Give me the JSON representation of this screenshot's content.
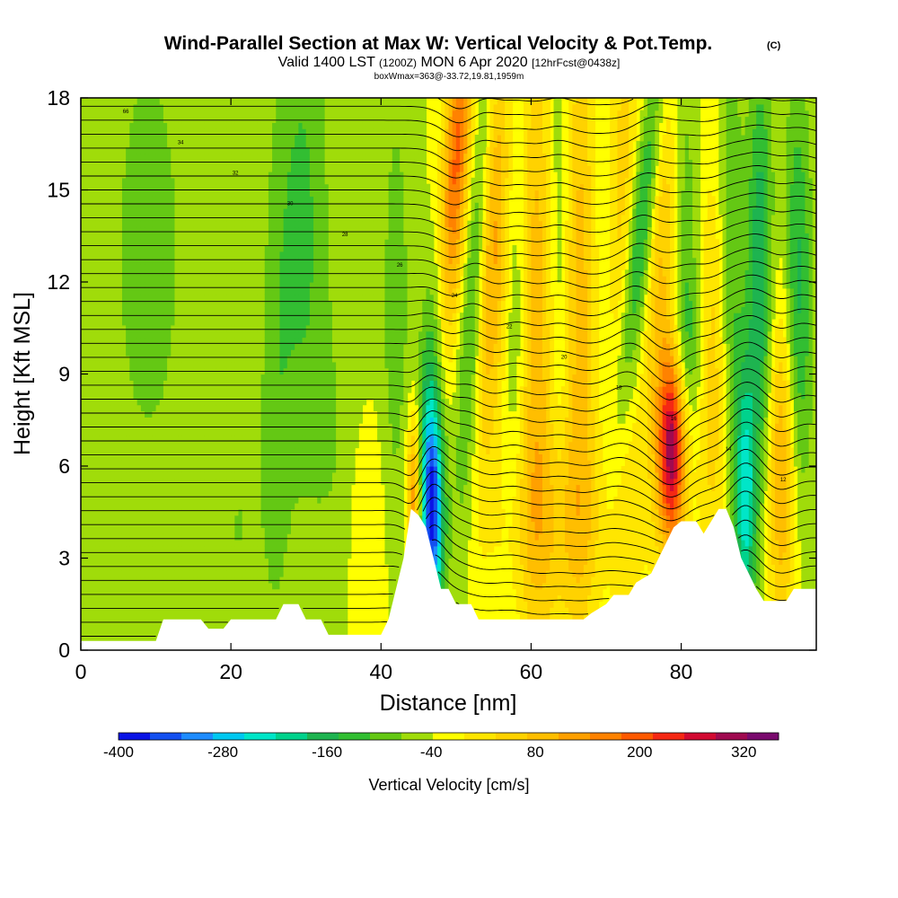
{
  "chart_data": {
    "type": "heatmap",
    "title": "Wind-Parallel Section at Max W: Vertical Velocity & Pot.Temp.",
    "title_suffix": "(C)",
    "subtitle": {
      "valid": "Valid 1400 LST",
      "utc": "(1200Z)",
      "date": "MON 6 Apr 2020",
      "forecast": "[12hrFcst@0438z]",
      "box": "boxWmax=363@-33.72,19.81,1959m"
    },
    "xlabel": "Distance [nm]",
    "ylabel": "Height [Kft MSL]",
    "xlim": [
      0,
      98
    ],
    "ylim": [
      0,
      18
    ],
    "x_ticks": [
      "0",
      "20",
      "40",
      "60",
      "80"
    ],
    "y_ticks": [
      "0",
      "3",
      "6",
      "9",
      "12",
      "15",
      "18"
    ],
    "colorbar": {
      "label": "Vertical Velocity [cm/s]",
      "ticks": [
        "-400",
        "-280",
        "-160",
        "-40",
        "80",
        "200",
        "320"
      ],
      "min": -400,
      "max": 360,
      "step": 40,
      "colors": [
        "#0a14e6",
        "#1450f0",
        "#1e8cff",
        "#00c8f0",
        "#00e6c8",
        "#00d28c",
        "#1eb450",
        "#32be32",
        "#64c814",
        "#a0dc0a",
        "#ffff00",
        "#ffe600",
        "#ffd200",
        "#ffbe00",
        "#ffa000",
        "#ff8200",
        "#ff5a00",
        "#f52814",
        "#d20a32",
        "#a00a50",
        "#7a0a6e"
      ]
    },
    "w_features": [
      {
        "x": 44.5,
        "amp": 250,
        "wx": 0.8,
        "y0": 5.0,
        "wy": 2.0
      },
      {
        "x": 46.8,
        "amp": -380,
        "wx": 1.1,
        "y0": 4.5,
        "wy": 2.5
      },
      {
        "x": 49.5,
        "amp": 340,
        "wx": 1.4,
        "y0": 15,
        "wy": 4.5,
        "tilt": 0.3
      },
      {
        "x": 47.5,
        "amp": -200,
        "wx": 1.3,
        "y0": 11,
        "wy": 4.5,
        "tilt": 0.3
      },
      {
        "x": 54.5,
        "amp": 200,
        "wx": 1.8,
        "y0": 13,
        "wy": 5.0,
        "tilt": 0.2
      },
      {
        "x": 52.5,
        "amp": -180,
        "wx": 1.2,
        "y0": 12,
        "wy": 5.5,
        "tilt": 0.2
      },
      {
        "x": 58.0,
        "amp": -100,
        "wx": 1.2,
        "y0": 12,
        "wy": 6.0
      },
      {
        "x": 60.5,
        "amp": 150,
        "wx": 2.0,
        "y0": 11,
        "wy": 7.0
      },
      {
        "x": 63.8,
        "amp": -100,
        "wx": 1.2,
        "y0": 13,
        "wy": 6.0
      },
      {
        "x": 66.5,
        "amp": 150,
        "wx": 2.0,
        "y0": 12,
        "wy": 7.0
      },
      {
        "x": 69.5,
        "amp": -80,
        "wx": 1.5,
        "y0": 13,
        "wy": 7.0
      },
      {
        "x": 72.0,
        "amp": 120,
        "wx": 2.0,
        "y0": 13,
        "wy": 7.0
      },
      {
        "x": 74.8,
        "amp": -220,
        "wx": 1.3,
        "y0": 14,
        "wy": 5.0,
        "tilt": 0.4
      },
      {
        "x": 78.8,
        "amp": 350,
        "wx": 1.3,
        "y0": 6.5,
        "wy": 2.2
      },
      {
        "x": 77.5,
        "amp": 150,
        "wx": 2.0,
        "y0": 14,
        "wy": 6.0
      },
      {
        "x": 80.2,
        "amp": -100,
        "wx": 1.5,
        "y0": 14,
        "wy": 5.0
      },
      {
        "x": 81.0,
        "amp": -80,
        "wx": 1.5,
        "y0": 10,
        "wy": 2.0
      },
      {
        "x": 84.5,
        "amp": 120,
        "wx": 1.8,
        "y0": 9,
        "wy": 5.0
      },
      {
        "x": 86.5,
        "amp": -120,
        "wx": 1.2,
        "y0": 12,
        "wy": 5.0
      },
      {
        "x": 88.5,
        "amp": -220,
        "wx": 1.0,
        "y0": 5,
        "wy": 3.0
      },
      {
        "x": 90.5,
        "amp": -160,
        "wx": 1.2,
        "y0": 12,
        "wy": 5.0
      },
      {
        "x": 93.5,
        "amp": 180,
        "wx": 1.5,
        "y0": 6,
        "wy": 4.0
      },
      {
        "x": 95.5,
        "amp": -150,
        "wx": 1.3,
        "y0": 11,
        "wy": 5.0
      },
      {
        "x": 9,
        "amp": -60,
        "wx": 4,
        "y0": 13,
        "wy": 6
      },
      {
        "x": 21,
        "amp": -40,
        "wx": 2.5,
        "y0": 4,
        "wy": 4
      },
      {
        "x": 26,
        "amp": -50,
        "wx": 1.5,
        "y0": 8,
        "wy": 6
      },
      {
        "x": 29.5,
        "amp": -90,
        "wx": 2.5,
        "y0": 14,
        "wy": 6
      },
      {
        "x": 35,
        "amp": -40,
        "wx": 3,
        "y0": 6,
        "wy": 4
      },
      {
        "x": 38,
        "amp": 60,
        "wx": 2,
        "y0": 4,
        "wy": 3
      },
      {
        "x": 42,
        "amp": -60,
        "wx": 1.5,
        "y0": 11,
        "wy": 6
      },
      {
        "x": 64,
        "amp": 90,
        "wx": 6,
        "y0": 4,
        "wy": 2.5
      }
    ],
    "terrain": [
      [
        0,
        0.3
      ],
      [
        10,
        0.3
      ],
      [
        11,
        1.0
      ],
      [
        16,
        1.0
      ],
      [
        17,
        0.7
      ],
      [
        19,
        0.7
      ],
      [
        20,
        1.0
      ],
      [
        26,
        1.0
      ],
      [
        27,
        1.5
      ],
      [
        29,
        1.5
      ],
      [
        30,
        1.0
      ],
      [
        32,
        1.0
      ],
      [
        33,
        0.5
      ],
      [
        40,
        0.5
      ],
      [
        41,
        1.0
      ],
      [
        42,
        2.0
      ],
      [
        43,
        3.0
      ],
      [
        44,
        4.6
      ],
      [
        45,
        4.4
      ],
      [
        46,
        4.0
      ],
      [
        47,
        3.0
      ],
      [
        48,
        2.0
      ],
      [
        49,
        2.0
      ],
      [
        50,
        1.5
      ],
      [
        52,
        1.5
      ],
      [
        53,
        1.0
      ],
      [
        67,
        1.0
      ],
      [
        68,
        1.2
      ],
      [
        70,
        1.5
      ],
      [
        71,
        1.8
      ],
      [
        73,
        1.8
      ],
      [
        74,
        2.2
      ],
      [
        76,
        2.5
      ],
      [
        77,
        3.0
      ],
      [
        78,
        3.5
      ],
      [
        79,
        4.0
      ],
      [
        80,
        4.2
      ],
      [
        82,
        4.2
      ],
      [
        83,
        3.8
      ],
      [
        84,
        4.2
      ],
      [
        85,
        4.6
      ],
      [
        86,
        4.6
      ],
      [
        87,
        4.0
      ],
      [
        88,
        3.0
      ],
      [
        89,
        2.5
      ],
      [
        90,
        2.0
      ],
      [
        91,
        1.6
      ],
      [
        94,
        1.6
      ],
      [
        95,
        2.0
      ],
      [
        98,
        2.0
      ]
    ],
    "theta_levels": {
      "start": 12,
      "step": 1,
      "count": 86
    },
    "theta_sample_labels": [
      "66",
      "34",
      "32",
      "30",
      "28",
      "26",
      "24",
      "22",
      "20",
      "18",
      "16",
      "14",
      "12"
    ]
  }
}
